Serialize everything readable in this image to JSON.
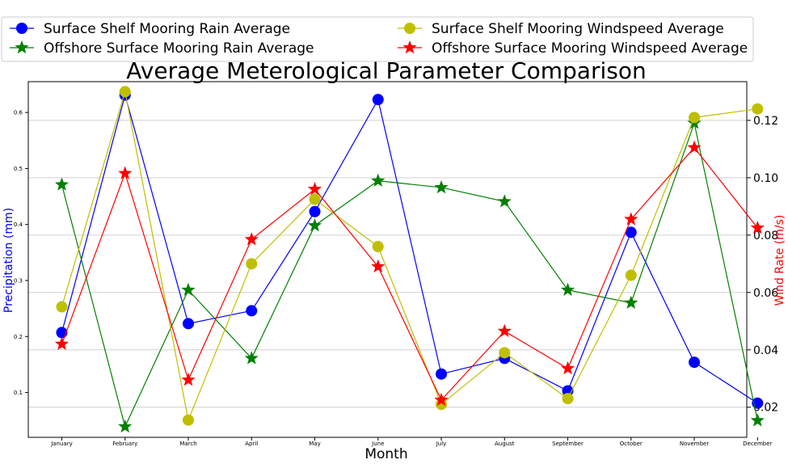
{
  "chart_data": {
    "type": "line",
    "title": "Average Meterological Parameter Comparison",
    "xlabel": "Month",
    "ylabel_left": "Precipitation (mm)",
    "ylabel_right": "Wind Rate (m/s)",
    "categories": [
      "January",
      "February",
      "March",
      "April",
      "May",
      "June",
      "July",
      "August",
      "September",
      "October",
      "November",
      "December"
    ],
    "y_left": {
      "lim": [
        0.02,
        0.655
      ],
      "ticks": [
        0.1,
        0.2,
        0.3,
        0.4,
        0.5,
        0.6
      ],
      "tick_labels": [
        "0.1",
        "0.2",
        "0.3",
        "0.4",
        "0.5",
        "0.6"
      ],
      "color": "#0000ff"
    },
    "y_right": {
      "lim": [
        0.0095,
        0.1335
      ],
      "ticks": [
        0.02,
        0.04,
        0.06,
        0.08,
        0.1,
        0.12
      ],
      "tick_labels": [
        "0.02",
        "0.04",
        "0.06",
        "0.08",
        "0.10",
        "0.12"
      ],
      "color": "#ff0000"
    },
    "grid": "horizontal",
    "legend_position": "top",
    "series": [
      {
        "name": "Surface Shelf Mooring Rain Average",
        "axis": "left",
        "color": "#0000ff",
        "marker": "circle",
        "values": [
          0.207,
          0.631,
          0.223,
          0.246,
          0.423,
          0.623,
          0.133,
          0.161,
          0.103,
          0.386,
          0.154,
          0.081
        ]
      },
      {
        "name": "Offshore Surface Mooring Rain Average",
        "axis": "left",
        "color": "#008000",
        "marker": "star",
        "values": [
          0.471,
          0.039,
          0.283,
          0.161,
          0.398,
          0.478,
          0.466,
          0.441,
          0.283,
          0.26,
          0.581,
          0.05
        ]
      },
      {
        "name": "Surface Shelf Mooring Windspeed Average",
        "axis": "right",
        "color": "#bfbf00",
        "marker": "circle",
        "values": [
          0.055,
          0.13,
          0.0155,
          0.07,
          0.0925,
          0.076,
          0.021,
          0.039,
          0.023,
          0.066,
          0.121,
          0.124
        ]
      },
      {
        "name": "Offshore Surface Mooring Windspeed Average",
        "axis": "right",
        "color": "#ff0000",
        "marker": "star",
        "values": [
          0.042,
          0.1015,
          0.0295,
          0.0785,
          0.096,
          0.069,
          0.0225,
          0.0465,
          0.0335,
          0.0855,
          0.1105,
          0.0825
        ]
      }
    ]
  }
}
